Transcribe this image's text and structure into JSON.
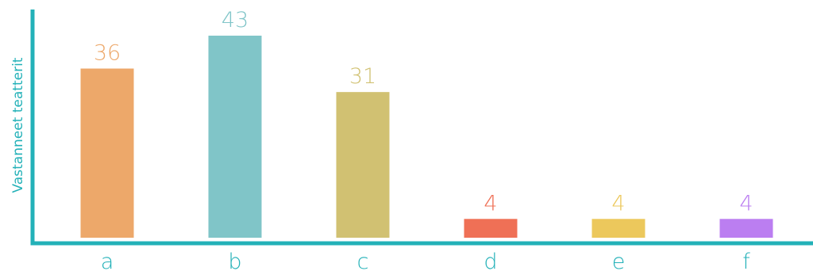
{
  "chart_data": {
    "type": "bar",
    "categories": [
      "a",
      "b",
      "c",
      "d",
      "e",
      "f"
    ],
    "values": [
      36,
      43,
      31,
      4,
      4,
      4
    ],
    "value_labels": [
      "36",
      "43",
      "31",
      "4",
      "4",
      "4"
    ],
    "ylabel": "Vastanneet teatterit",
    "xlabel": "",
    "title": "",
    "ylim": [
      0,
      43
    ],
    "grid": false,
    "legend": "none",
    "colors": {
      "bars": [
        "#eda86a",
        "#80c5c8",
        "#d1c172",
        "#ef7056",
        "#ecc85c",
        "#bb7ef1"
      ],
      "axis": "#23b1b8",
      "tick_text": "#23b1b8",
      "ylabel_text": "#23b1b8"
    }
  }
}
